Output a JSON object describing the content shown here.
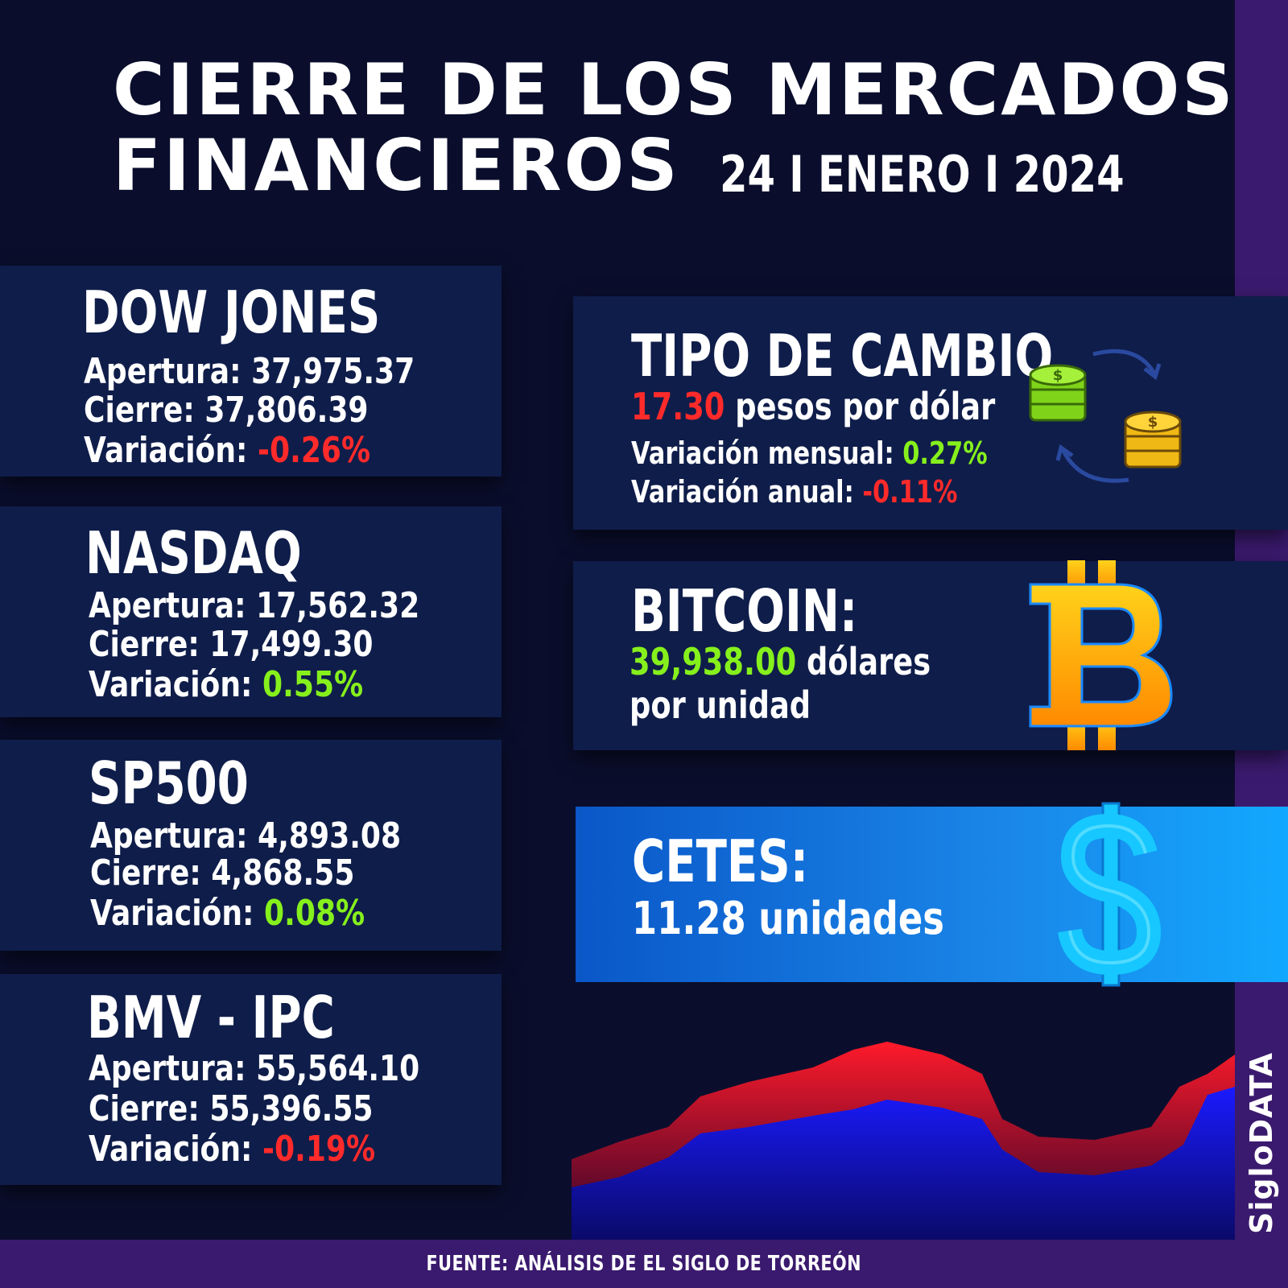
{
  "header": {
    "title_line1": "CIERRE DE LOS MERCADOS",
    "title_line2": "FINANCIEROS",
    "date": "24 I ENERO I 2024"
  },
  "indices": [
    {
      "name": "DOW JONES",
      "open_label": "Apertura:",
      "open": "37,975.37",
      "close_label": "Cierre:",
      "close": "37,806.39",
      "var_label": "Variación:",
      "var": "-0.26%"
    },
    {
      "name": "NASDAQ",
      "open_label": "Apertura:",
      "open": "17,562.32",
      "close_label": "Cierre:",
      "close": "17,499.30",
      "var_label": "Variación:",
      "var": "0.55%"
    },
    {
      "name": "SP500",
      "open_label": "Apertura:",
      "open": "4,893.08",
      "close_label": "Cierre:",
      "close": "4,868.55",
      "var_label": "Variación:",
      "var": "0.08%"
    },
    {
      "name": "BMV - IPC",
      "open_label": "Apertura:",
      "open": "55,564.10",
      "close_label": "Cierre:",
      "close": "55,396.55",
      "var_label": "Variación:",
      "var": "-0.19%"
    }
  ],
  "exchange": {
    "title": "TIPO DE CAMBIO",
    "rate": "17.30",
    "rate_unit": "pesos por dólar",
    "monthly_label": "Variación mensual:",
    "monthly": "0.27%",
    "annual_label": "Variación anual:",
    "annual": "-0.11%"
  },
  "bitcoin": {
    "title": "BITCOIN:",
    "price": "39,938.00",
    "unit_line1": "dólares",
    "unit_line2": "por unidad"
  },
  "cetes": {
    "title": "CETES:",
    "value_text": "11.28 unidades"
  },
  "brand": "SigloDATA",
  "footer": "FUENTE: ANÁLISIS DE EL SIGLO DE TORREÓN",
  "colors": {
    "background": "#0a0e2c",
    "card": "#0f1d4a",
    "accent_purple": "#3a1a6e",
    "negative": "#ff2a2a",
    "positive": "#86f01c"
  },
  "icons": {
    "exchange": "coin-exchange-icon",
    "bitcoin": "bitcoin-icon",
    "cetes": "dollar-sign-icon"
  }
}
